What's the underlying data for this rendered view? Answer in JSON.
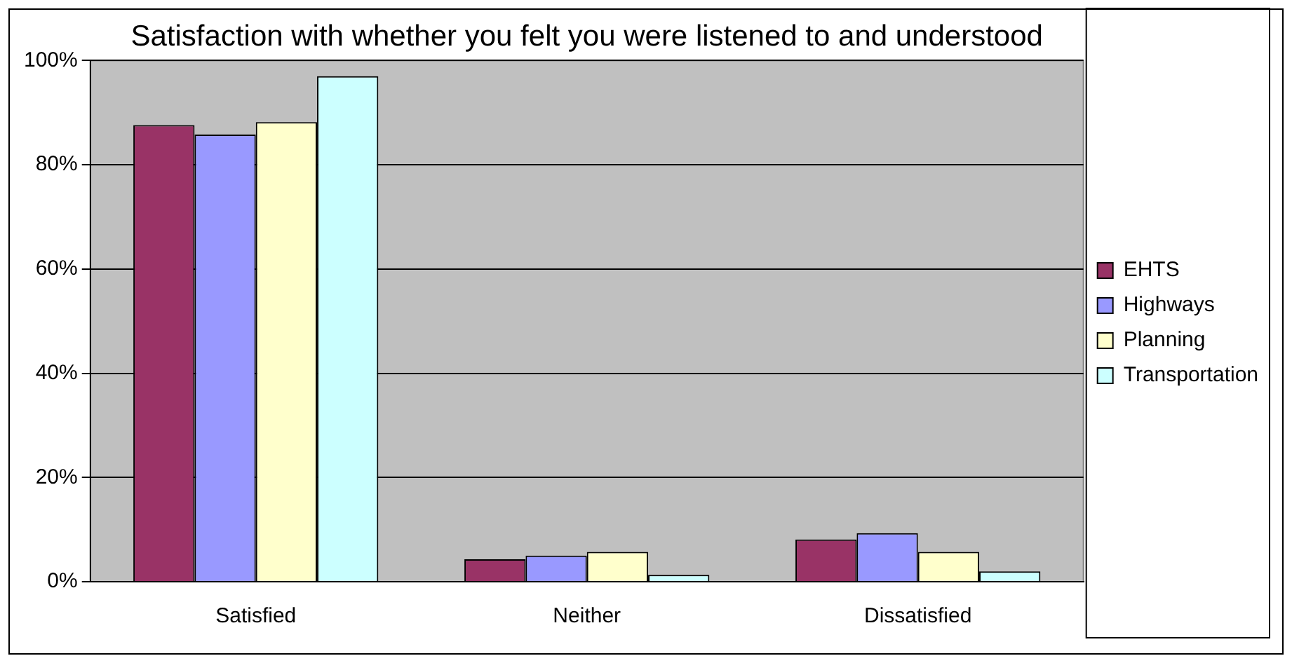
{
  "chart_data": {
    "type": "bar",
    "title": "Satisfaction with whether you felt you were listened to and understood",
    "categories": [
      "Satisfied",
      "Neither",
      "Dissatisfied"
    ],
    "series": [
      {
        "name": "EHTS",
        "color": "#993366",
        "values": [
          87.6,
          4.3,
          8.1
        ]
      },
      {
        "name": "Highways",
        "color": "#9999ff",
        "values": [
          85.8,
          5,
          9.3
        ]
      },
      {
        "name": "Planning",
        "color": "#ffffcc",
        "values": [
          88.2,
          5.7,
          5.7
        ]
      },
      {
        "name": "Transportation",
        "color": "#ccffff",
        "values": [
          97,
          1.3,
          2
        ]
      }
    ],
    "ylim": [
      0,
      100
    ],
    "yticks": [
      {
        "value": 0,
        "label": "0%"
      },
      {
        "value": 20,
        "label": "20%"
      },
      {
        "value": 40,
        "label": "40%"
      },
      {
        "value": 60,
        "label": "60%"
      },
      {
        "value": 80,
        "label": "80%"
      },
      {
        "value": 100,
        "label": "100%"
      }
    ],
    "grid": "y",
    "legend": "right"
  }
}
